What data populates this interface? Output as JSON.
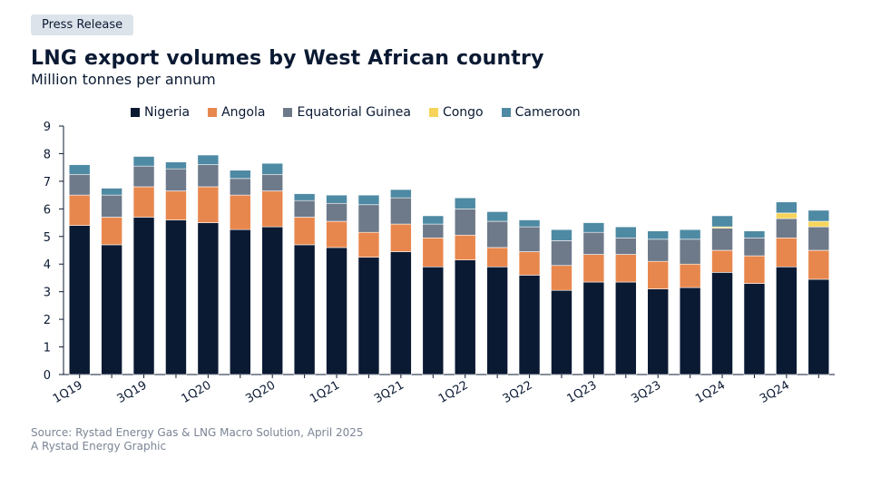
{
  "tag": "Press Release",
  "title": "LNG export volumes by West African country",
  "subtitle": "Million tonnes per annum",
  "source_line1": "Source: Rystad Energy Gas & LNG Macro Solution, April 2025",
  "source_line2": "A Rystad Energy Graphic",
  "colors": {
    "Nigeria": "#0b1a33",
    "Angola": "#e8874d",
    "Equatorial Guinea": "#6e7a8a",
    "Congo": "#f6d45a",
    "Cameroon": "#4e8aa3"
  },
  "chart_data": {
    "type": "bar",
    "stacked": true,
    "categories": [
      "1Q19",
      "2Q19",
      "3Q19",
      "4Q19",
      "1Q20",
      "2Q20",
      "3Q20",
      "4Q20",
      "1Q21",
      "2Q21",
      "3Q21",
      "4Q21",
      "1Q22",
      "2Q22",
      "3Q22",
      "4Q22",
      "1Q23",
      "2Q23",
      "3Q23",
      "4Q23",
      "1Q24",
      "2Q24",
      "3Q24",
      "4Q24"
    ],
    "x_tick_labels": [
      "1Q19",
      "",
      "3Q19",
      "",
      "1Q20",
      "",
      "3Q20",
      "",
      "1Q21",
      "",
      "3Q21",
      "",
      "1Q22",
      "",
      "3Q22",
      "",
      "1Q23",
      "",
      "3Q23",
      "",
      "1Q24",
      "",
      "3Q24",
      ""
    ],
    "series": [
      {
        "name": "Nigeria",
        "values": [
          5.4,
          4.7,
          5.7,
          5.6,
          5.5,
          5.25,
          5.35,
          4.7,
          4.6,
          4.25,
          4.45,
          3.9,
          4.15,
          3.9,
          3.6,
          3.05,
          3.35,
          3.35,
          3.1,
          3.15,
          3.7,
          3.3,
          3.9,
          3.45
        ]
      },
      {
        "name": "Angola",
        "values": [
          1.1,
          1.0,
          1.1,
          1.05,
          1.3,
          1.25,
          1.3,
          1.0,
          0.95,
          0.9,
          1.0,
          1.05,
          0.9,
          0.7,
          0.85,
          0.9,
          1.0,
          1.0,
          1.0,
          0.85,
          0.8,
          1.0,
          1.05,
          1.05
        ]
      },
      {
        "name": "Equatorial Guinea",
        "values": [
          0.75,
          0.8,
          0.75,
          0.8,
          0.8,
          0.6,
          0.6,
          0.6,
          0.65,
          1.0,
          0.95,
          0.5,
          0.95,
          0.95,
          0.9,
          0.9,
          0.8,
          0.6,
          0.8,
          0.9,
          0.8,
          0.65,
          0.7,
          0.85
        ]
      },
      {
        "name": "Congo",
        "values": [
          0,
          0,
          0,
          0,
          0,
          0,
          0,
          0,
          0,
          0,
          0,
          0,
          0,
          0,
          0,
          0,
          0,
          0,
          0,
          0,
          0.05,
          0,
          0.2,
          0.2
        ]
      },
      {
        "name": "Cameroon",
        "values": [
          0.35,
          0.25,
          0.35,
          0.25,
          0.35,
          0.3,
          0.4,
          0.25,
          0.3,
          0.35,
          0.3,
          0.3,
          0.4,
          0.35,
          0.25,
          0.4,
          0.35,
          0.4,
          0.3,
          0.35,
          0.4,
          0.25,
          0.4,
          0.4
        ]
      }
    ],
    "ylim": [
      0,
      9
    ],
    "yticks": [
      0,
      1,
      2,
      3,
      4,
      5,
      6,
      7,
      8,
      9
    ],
    "grid": false,
    "legend_position": "top"
  }
}
